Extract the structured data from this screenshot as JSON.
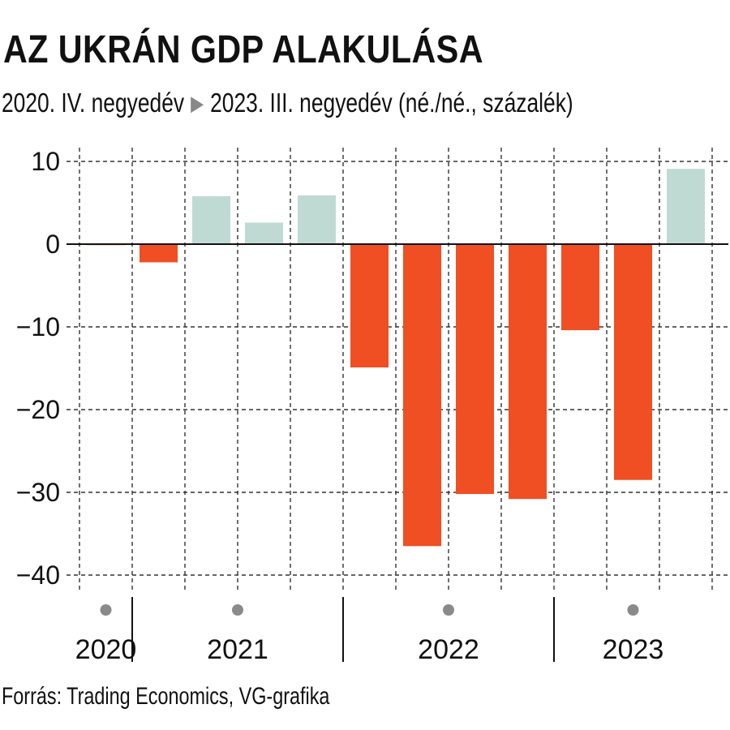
{
  "header": {
    "title": "AZ UKRÁN GDP ALAKULÁSA",
    "subtitle_start": "2020. IV. negyedév",
    "subtitle_end": "2023. III. negyedév (né./né., százalék)"
  },
  "footer": {
    "source": "Forrás: Trading Economics, VG-grafika"
  },
  "chart_data": {
    "type": "bar",
    "title": "AZ UKRÁN GDP ALAKULÁSA",
    "subtitle": "2020. IV. negyedév ▶ 2023. III. negyedév (né./né., százalék)",
    "categories": [
      "2020 IV",
      "2021 I",
      "2021 II",
      "2021 III",
      "2021 IV",
      "2022 I",
      "2022 II",
      "2022 III",
      "2022 IV",
      "2023 I",
      "2023 II",
      "2023 III"
    ],
    "values": [
      -0.1,
      -2.2,
      5.8,
      2.6,
      5.9,
      -14.9,
      -36.5,
      -30.2,
      -30.8,
      -10.4,
      -28.5,
      9.1
    ],
    "ylim": [
      -42,
      10
    ],
    "yticks": [
      10,
      0,
      -10,
      -20,
      -30,
      -40
    ],
    "ytick_labels": [
      "10",
      "0",
      "−10",
      "−20",
      "−30",
      "−40"
    ],
    "year_groups": [
      {
        "label": "2020",
        "start": 0,
        "count": 1
      },
      {
        "label": "2021",
        "start": 1,
        "count": 4
      },
      {
        "label": "2022",
        "start": 5,
        "count": 4
      },
      {
        "label": "2023",
        "start": 9,
        "count": 3
      }
    ],
    "colors": {
      "positive": "#bfdad3",
      "negative": "#f04e23",
      "grid": "#333333"
    },
    "grid": true,
    "legend": "none"
  }
}
